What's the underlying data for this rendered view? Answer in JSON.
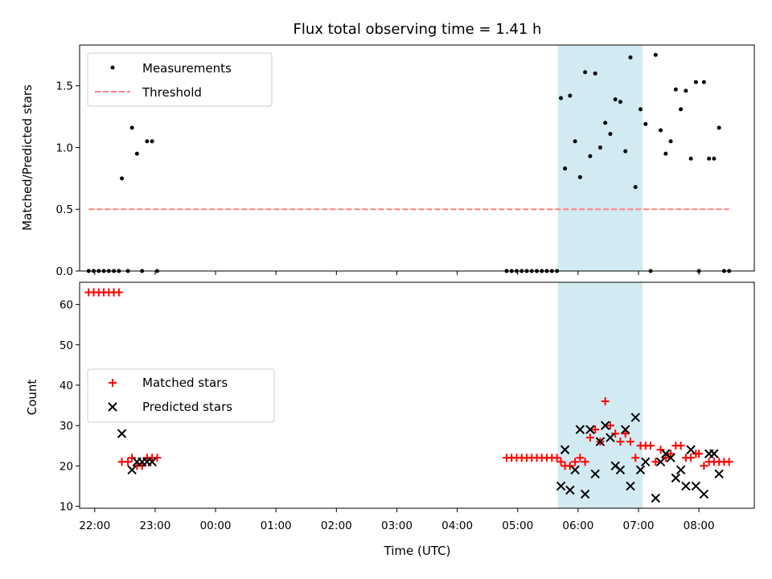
{
  "figure": {
    "title": "Flux total observing time = 1.41 h",
    "xlabel": "Time (UTC)"
  },
  "chart_data": [
    {
      "type": "scatter",
      "ylabel": "Matched/Predicted stars",
      "xlim": [
        "21:45",
        "08:55"
      ],
      "ylim": [
        0,
        1.83
      ],
      "yticks": [
        0.0,
        0.5,
        1.0,
        1.5
      ],
      "ytick_labels": [
        "0.0",
        "0.5",
        "1.0",
        "1.5"
      ],
      "highlight_span": {
        "x": [
          "05:40",
          "07:04"
        ],
        "color": "#add8e6"
      },
      "legend": {
        "placement": "top-left"
      },
      "series": [
        {
          "name": "Measurements",
          "marker": "dot",
          "color": "#000000",
          "points": [
            [
              "21:54",
              0
            ],
            [
              "21:59",
              0
            ],
            [
              "22:04",
              0
            ],
            [
              "22:09",
              0
            ],
            [
              "22:14",
              0
            ],
            [
              "22:19",
              0
            ],
            [
              "22:24",
              0
            ],
            [
              "22:27",
              0.75
            ],
            [
              "22:33",
              0
            ],
            [
              "22:37",
              1.16
            ],
            [
              "22:42",
              0.95
            ],
            [
              "22:47",
              0
            ],
            [
              "22:52",
              1.05
            ],
            [
              "22:57",
              1.05
            ],
            [
              "23:02",
              0
            ],
            [
              "04:49",
              0
            ],
            [
              "04:54",
              0
            ],
            [
              "04:59",
              0
            ],
            [
              "05:04",
              0
            ],
            [
              "05:09",
              0
            ],
            [
              "05:14",
              0
            ],
            [
              "05:19",
              0
            ],
            [
              "05:24",
              0
            ],
            [
              "05:29",
              0
            ],
            [
              "05:34",
              0
            ],
            [
              "05:39",
              0
            ],
            [
              "05:43",
              1.4
            ],
            [
              "05:47",
              0.83
            ],
            [
              "05:52",
              1.42
            ],
            [
              "05:57",
              1.05
            ],
            [
              "06:02",
              0.76
            ],
            [
              "06:07",
              1.61
            ],
            [
              "06:12",
              0.93
            ],
            [
              "06:17",
              1.6
            ],
            [
              "06:22",
              1.0
            ],
            [
              "06:27",
              1.2
            ],
            [
              "06:32",
              1.11
            ],
            [
              "06:37",
              1.39
            ],
            [
              "06:42",
              1.37
            ],
            [
              "06:47",
              0.97
            ],
            [
              "06:52",
              1.73
            ],
            [
              "06:57",
              0.68
            ],
            [
              "07:02",
              1.31
            ],
            [
              "07:07",
              1.19
            ],
            [
              "07:12",
              0
            ],
            [
              "07:17",
              1.75
            ],
            [
              "07:22",
              1.14
            ],
            [
              "07:27",
              0.95
            ],
            [
              "07:32",
              1.05
            ],
            [
              "07:37",
              1.47
            ],
            [
              "07:42",
              1.31
            ],
            [
              "07:47",
              1.46
            ],
            [
              "07:52",
              0.91
            ],
            [
              "07:57",
              1.53
            ],
            [
              "08:00",
              0
            ],
            [
              "08:05",
              1.53
            ],
            [
              "08:10",
              0.91
            ],
            [
              "08:15",
              0.91
            ],
            [
              "08:20",
              1.16
            ],
            [
              "08:25",
              0
            ],
            [
              "08:30",
              0
            ]
          ]
        },
        {
          "name": "Threshold",
          "kind": "dashed-line",
          "color": "#ff7f7f",
          "points": [
            [
              "21:54",
              0.5
            ],
            [
              "08:30",
              0.5
            ]
          ]
        }
      ]
    },
    {
      "type": "scatter",
      "ylabel": "Count",
      "xlim": [
        "21:45",
        "08:55"
      ],
      "ylim": [
        9.5,
        65.5
      ],
      "yticks": [
        10,
        20,
        30,
        40,
        50,
        60
      ],
      "ytick_labels": [
        "10",
        "20",
        "30",
        "40",
        "50",
        "60"
      ],
      "xticks": [
        "22:00",
        "23:00",
        "00:00",
        "01:00",
        "02:00",
        "03:00",
        "04:00",
        "05:00",
        "06:00",
        "07:00",
        "08:00"
      ],
      "xtick_labels": [
        "22:00",
        "23:00",
        "00:00",
        "01:00",
        "02:00",
        "03:00",
        "04:00",
        "05:00",
        "06:00",
        "07:00",
        "08:00"
      ],
      "highlight_span": {
        "x": [
          "05:40",
          "07:04"
        ],
        "color": "#add8e6"
      },
      "legend": {
        "placement": "center-left"
      },
      "series": [
        {
          "name": "Matched stars",
          "marker": "plus",
          "color": "#ff0000",
          "points": [
            [
              "21:54",
              63
            ],
            [
              "21:59",
              63
            ],
            [
              "22:04",
              63
            ],
            [
              "22:09",
              63
            ],
            [
              "22:14",
              63
            ],
            [
              "22:19",
              63
            ],
            [
              "22:24",
              63
            ],
            [
              "22:27",
              21
            ],
            [
              "22:33",
              21
            ],
            [
              "22:37",
              22
            ],
            [
              "22:42",
              20
            ],
            [
              "22:47",
              20
            ],
            [
              "22:52",
              22
            ],
            [
              "22:57",
              22
            ],
            [
              "23:02",
              22
            ],
            [
              "04:49",
              22
            ],
            [
              "04:54",
              22
            ],
            [
              "04:59",
              22
            ],
            [
              "05:04",
              22
            ],
            [
              "05:09",
              22
            ],
            [
              "05:14",
              22
            ],
            [
              "05:19",
              22
            ],
            [
              "05:24",
              22
            ],
            [
              "05:29",
              22
            ],
            [
              "05:34",
              22
            ],
            [
              "05:39",
              22
            ],
            [
              "05:43",
              21
            ],
            [
              "05:47",
              20
            ],
            [
              "05:52",
              20
            ],
            [
              "05:57",
              21
            ],
            [
              "06:02",
              22
            ],
            [
              "06:07",
              21
            ],
            [
              "06:12",
              27
            ],
            [
              "06:17",
              29
            ],
            [
              "06:22",
              26
            ],
            [
              "06:27",
              36
            ],
            [
              "06:32",
              30
            ],
            [
              "06:37",
              28
            ],
            [
              "06:42",
              26
            ],
            [
              "06:47",
              28
            ],
            [
              "06:52",
              26
            ],
            [
              "06:57",
              22
            ],
            [
              "07:02",
              25
            ],
            [
              "07:07",
              25
            ],
            [
              "07:12",
              25
            ],
            [
              "07:17",
              21
            ],
            [
              "07:22",
              24
            ],
            [
              "07:27",
              22
            ],
            [
              "07:32",
              23
            ],
            [
              "07:37",
              25
            ],
            [
              "07:42",
              25
            ],
            [
              "07:47",
              22
            ],
            [
              "07:52",
              22
            ],
            [
              "07:57",
              23
            ],
            [
              "08:00",
              23
            ],
            [
              "08:05",
              20
            ],
            [
              "08:10",
              21
            ],
            [
              "08:15",
              21
            ],
            [
              "08:20",
              21
            ],
            [
              "08:25",
              21
            ],
            [
              "08:30",
              21
            ]
          ]
        },
        {
          "name": "Predicted stars",
          "marker": "x",
          "color": "#000000",
          "points": [
            [
              "22:27",
              28
            ],
            [
              "22:37",
              19
            ],
            [
              "22:42",
              21
            ],
            [
              "22:47",
              21
            ],
            [
              "22:52",
              21
            ],
            [
              "22:57",
              21
            ],
            [
              "05:43",
              15
            ],
            [
              "05:47",
              24
            ],
            [
              "05:52",
              14
            ],
            [
              "05:57",
              19
            ],
            [
              "06:02",
              29
            ],
            [
              "06:07",
              13
            ],
            [
              "06:12",
              29
            ],
            [
              "06:17",
              18
            ],
            [
              "06:22",
              26
            ],
            [
              "06:27",
              30
            ],
            [
              "06:32",
              27
            ],
            [
              "06:37",
              20
            ],
            [
              "06:42",
              19
            ],
            [
              "06:47",
              29
            ],
            [
              "06:52",
              15
            ],
            [
              "06:57",
              32
            ],
            [
              "07:02",
              19
            ],
            [
              "07:07",
              21
            ],
            [
              "07:17",
              12
            ],
            [
              "07:22",
              21
            ],
            [
              "07:27",
              23
            ],
            [
              "07:32",
              22
            ],
            [
              "07:37",
              17
            ],
            [
              "07:42",
              19
            ],
            [
              "07:47",
              15
            ],
            [
              "07:52",
              24
            ],
            [
              "07:57",
              15
            ],
            [
              "08:05",
              13
            ],
            [
              "08:10",
              23
            ],
            [
              "08:15",
              23
            ],
            [
              "08:20",
              18
            ]
          ]
        }
      ]
    }
  ]
}
